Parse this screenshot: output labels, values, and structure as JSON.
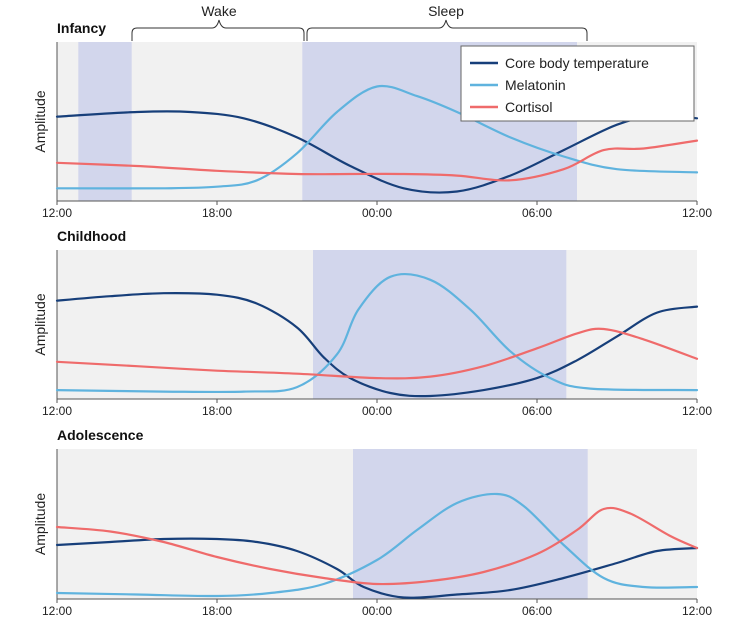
{
  "colors": {
    "core_body_temperature": "#173f7a",
    "melatonin": "#5fb3de",
    "cortisol": "#ef6b6b",
    "sleep_shade": "#d2d6ec",
    "panel_bg": "#f1f1f1"
  },
  "top_labels": {
    "wake": "Wake",
    "sleep": "Sleep"
  },
  "legend": [
    "Core body temperature",
    "Melatonin",
    "Cortisol"
  ],
  "chart_data": [
    {
      "type": "line",
      "title": "Infancy",
      "ylabel": "Amplitude",
      "x_ticks": [
        "12:00",
        "18:00",
        "00:00",
        "06:00",
        "12:00"
      ],
      "x_range_hours": [
        12,
        36
      ],
      "sleep_windows": [
        [
          12.8,
          14.8
        ],
        [
          21.2,
          31.5
        ]
      ],
      "series": [
        {
          "name": "Core body temperature",
          "points": [
            [
              12,
              0.53
            ],
            [
              15,
              0.56
            ],
            [
              17,
              0.56
            ],
            [
              19,
              0.52
            ],
            [
              21,
              0.4
            ],
            [
              23,
              0.22
            ],
            [
              25,
              0.08
            ],
            [
              27,
              0.06
            ],
            [
              29,
              0.16
            ],
            [
              31,
              0.32
            ],
            [
              33,
              0.48
            ],
            [
              34.5,
              0.54
            ],
            [
              36,
              0.52
            ]
          ]
        },
        {
          "name": "Melatonin",
          "points": [
            [
              12,
              0.08
            ],
            [
              16,
              0.08
            ],
            [
              18,
              0.09
            ],
            [
              19.5,
              0.13
            ],
            [
              21,
              0.3
            ],
            [
              22.5,
              0.56
            ],
            [
              24,
              0.72
            ],
            [
              25.5,
              0.66
            ],
            [
              27,
              0.56
            ],
            [
              29,
              0.4
            ],
            [
              31,
              0.28
            ],
            [
              33,
              0.2
            ],
            [
              36,
              0.18
            ]
          ]
        },
        {
          "name": "Cortisol",
          "points": [
            [
              12,
              0.24
            ],
            [
              15,
              0.22
            ],
            [
              18,
              0.19
            ],
            [
              21,
              0.17
            ],
            [
              23,
              0.17
            ],
            [
              25,
              0.17
            ],
            [
              27,
              0.16
            ],
            [
              29,
              0.13
            ],
            [
              31,
              0.2
            ],
            [
              32.5,
              0.32
            ],
            [
              34,
              0.33
            ],
            [
              36,
              0.38
            ]
          ]
        }
      ]
    },
    {
      "type": "line",
      "title": "Childhood",
      "ylabel": "Amplitude",
      "x_ticks": [
        "12:00",
        "18:00",
        "00:00",
        "06:00",
        "12:00"
      ],
      "x_range_hours": [
        12,
        36
      ],
      "sleep_windows": [
        [
          21.6,
          31.1
        ]
      ],
      "series": [
        {
          "name": "Core body temperature",
          "points": [
            [
              12,
              0.66
            ],
            [
              14,
              0.69
            ],
            [
              16,
              0.71
            ],
            [
              18,
              0.7
            ],
            [
              19.5,
              0.64
            ],
            [
              21,
              0.48
            ],
            [
              22,
              0.28
            ],
            [
              23,
              0.14
            ],
            [
              24.5,
              0.04
            ],
            [
              26,
              0.02
            ],
            [
              28,
              0.06
            ],
            [
              30,
              0.14
            ],
            [
              31.5,
              0.26
            ],
            [
              33,
              0.42
            ],
            [
              34.5,
              0.58
            ],
            [
              36,
              0.62
            ]
          ]
        },
        {
          "name": "Melatonin",
          "points": [
            [
              12,
              0.06
            ],
            [
              16,
              0.05
            ],
            [
              19,
              0.05
            ],
            [
              21,
              0.08
            ],
            [
              22.5,
              0.3
            ],
            [
              23.3,
              0.6
            ],
            [
              24.5,
              0.82
            ],
            [
              26,
              0.8
            ],
            [
              27.5,
              0.6
            ],
            [
              29,
              0.32
            ],
            [
              30.5,
              0.14
            ],
            [
              32,
              0.07
            ],
            [
              36,
              0.06
            ]
          ]
        },
        {
          "name": "Cortisol",
          "points": [
            [
              12,
              0.25
            ],
            [
              15,
              0.22
            ],
            [
              18,
              0.19
            ],
            [
              21,
              0.17
            ],
            [
              24,
              0.14
            ],
            [
              26,
              0.15
            ],
            [
              28,
              0.22
            ],
            [
              30,
              0.34
            ],
            [
              31.5,
              0.44
            ],
            [
              32.5,
              0.47
            ],
            [
              34,
              0.4
            ],
            [
              36,
              0.27
            ]
          ]
        }
      ]
    },
    {
      "type": "line",
      "title": "Adolescence",
      "ylabel": "Amplitude",
      "x_ticks": [
        "12:00",
        "18:00",
        "00:00",
        "06:00",
        "12:00"
      ],
      "x_range_hours": [
        12,
        36
      ],
      "sleep_windows": [
        [
          23.1,
          31.9
        ]
      ],
      "series": [
        {
          "name": "Core body temperature",
          "points": [
            [
              12,
              0.36
            ],
            [
              14,
              0.38
            ],
            [
              16,
              0.4
            ],
            [
              18,
              0.4
            ],
            [
              19.5,
              0.38
            ],
            [
              21,
              0.32
            ],
            [
              22.5,
              0.2
            ],
            [
              23.5,
              0.08
            ],
            [
              25,
              0.01
            ],
            [
              27,
              0.03
            ],
            [
              29,
              0.06
            ],
            [
              31,
              0.14
            ],
            [
              33,
              0.24
            ],
            [
              34.5,
              0.32
            ],
            [
              36,
              0.34
            ]
          ]
        },
        {
          "name": "Melatonin",
          "points": [
            [
              12,
              0.04
            ],
            [
              15,
              0.03
            ],
            [
              18,
              0.02
            ],
            [
              20,
              0.04
            ],
            [
              22,
              0.1
            ],
            [
              24,
              0.26
            ],
            [
              25.5,
              0.46
            ],
            [
              27,
              0.64
            ],
            [
              28.5,
              0.7
            ],
            [
              29.5,
              0.62
            ],
            [
              31,
              0.36
            ],
            [
              32.5,
              0.14
            ],
            [
              34,
              0.08
            ],
            [
              36,
              0.08
            ]
          ]
        },
        {
          "name": "Cortisol",
          "points": [
            [
              12,
              0.48
            ],
            [
              14,
              0.45
            ],
            [
              16,
              0.38
            ],
            [
              18,
              0.28
            ],
            [
              20,
              0.2
            ],
            [
              22,
              0.14
            ],
            [
              24,
              0.1
            ],
            [
              26,
              0.12
            ],
            [
              28,
              0.18
            ],
            [
              30,
              0.3
            ],
            [
              31.5,
              0.46
            ],
            [
              32.5,
              0.6
            ],
            [
              33.5,
              0.57
            ],
            [
              35,
              0.42
            ],
            [
              36,
              0.34
            ]
          ]
        }
      ]
    }
  ]
}
